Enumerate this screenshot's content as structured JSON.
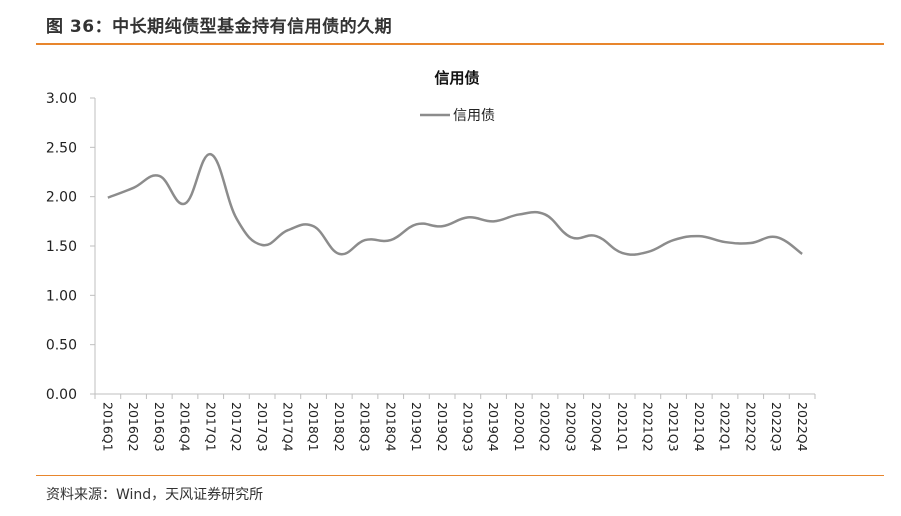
{
  "header": {
    "figure_title": "图 36：中长期纯债型基金持有信用债的久期"
  },
  "footer": {
    "source": "资料来源：Wind，天风证券研究所"
  },
  "colors": {
    "accent": "#e8862d",
    "series": "#8c8c8c",
    "axis": "#bfbfbf"
  },
  "chart_data": {
    "type": "line",
    "title": "信用债",
    "legend_position": "top-center",
    "grid": false,
    "ylim": [
      0,
      3
    ],
    "yticks": [
      "0.00",
      "0.50",
      "1.00",
      "1.50",
      "2.00",
      "2.50",
      "3.00"
    ],
    "categories": [
      "2016Q1",
      "2016Q2",
      "2016Q3",
      "2016Q4",
      "2017Q1",
      "2017Q2",
      "2017Q3",
      "2017Q4",
      "2018Q1",
      "2018Q2",
      "2018Q3",
      "2018Q4",
      "2019Q1",
      "2019Q2",
      "2019Q3",
      "2019Q4",
      "2020Q1",
      "2020Q2",
      "2020Q3",
      "2020Q4",
      "2021Q1",
      "2021Q2",
      "2021Q3",
      "2021Q4",
      "2022Q1",
      "2022Q2",
      "2022Q3",
      "2022Q4"
    ],
    "series": [
      {
        "name": "信用债",
        "values": [
          1.99,
          2.09,
          2.21,
          1.93,
          2.43,
          1.78,
          1.51,
          1.66,
          1.7,
          1.42,
          1.56,
          1.56,
          1.72,
          1.7,
          1.79,
          1.75,
          1.82,
          1.82,
          1.59,
          1.6,
          1.43,
          1.44,
          1.56,
          1.6,
          1.54,
          1.53,
          1.59,
          1.42
        ]
      }
    ]
  }
}
